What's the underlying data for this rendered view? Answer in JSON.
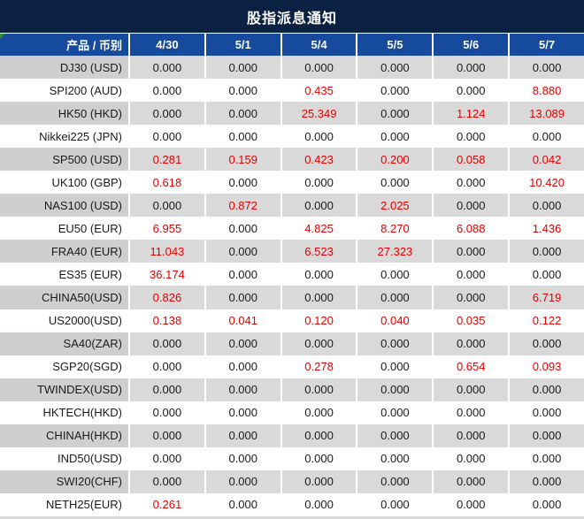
{
  "title": "股指派息通知",
  "table": {
    "product_header": "产品 / 币别",
    "date_headers": [
      "4/30",
      "5/1",
      "5/4",
      "5/5",
      "5/6",
      "5/7"
    ],
    "rows": [
      {
        "product": "DJ30 (USD)",
        "values": [
          "0.000",
          "0.000",
          "0.000",
          "0.000",
          "0.000",
          "0.000"
        ],
        "red": [
          false,
          false,
          false,
          false,
          false,
          false
        ]
      },
      {
        "product": "SPI200 (AUD)",
        "values": [
          "0.000",
          "0.000",
          "0.435",
          "0.000",
          "0.000",
          "8.880"
        ],
        "red": [
          false,
          false,
          true,
          false,
          false,
          true
        ]
      },
      {
        "product": "HK50 (HKD)",
        "values": [
          "0.000",
          "0.000",
          "25.349",
          "0.000",
          "1.124",
          "13.089"
        ],
        "red": [
          false,
          false,
          true,
          false,
          true,
          true
        ]
      },
      {
        "product": "Nikkei225 (JPN)",
        "values": [
          "0.000",
          "0.000",
          "0.000",
          "0.000",
          "0.000",
          "0.000"
        ],
        "red": [
          false,
          false,
          false,
          false,
          false,
          false
        ]
      },
      {
        "product": "SP500 (USD)",
        "values": [
          "0.281",
          "0.159",
          "0.423",
          "0.200",
          "0.058",
          "0.042"
        ],
        "red": [
          true,
          true,
          true,
          true,
          true,
          true
        ]
      },
      {
        "product": "UK100 (GBP)",
        "values": [
          "0.618",
          "0.000",
          "0.000",
          "0.000",
          "0.000",
          "10.420"
        ],
        "red": [
          true,
          false,
          false,
          false,
          false,
          true
        ]
      },
      {
        "product": "NAS100 (USD)",
        "values": [
          "0.000",
          "0.872",
          "0.000",
          "2.025",
          "0.000",
          "0.000"
        ],
        "red": [
          false,
          true,
          false,
          true,
          false,
          false
        ]
      },
      {
        "product": "EU50 (EUR)",
        "values": [
          "6.955",
          "0.000",
          "4.825",
          "8.270",
          "6.088",
          "1.436"
        ],
        "red": [
          true,
          false,
          true,
          true,
          true,
          true
        ]
      },
      {
        "product": "FRA40 (EUR)",
        "values": [
          "11.043",
          "0.000",
          "6.523",
          "27.323",
          "0.000",
          "0.000"
        ],
        "red": [
          true,
          false,
          true,
          true,
          false,
          false
        ]
      },
      {
        "product": "ES35 (EUR)",
        "values": [
          "36.174",
          "0.000",
          "0.000",
          "0.000",
          "0.000",
          "0.000"
        ],
        "red": [
          true,
          false,
          false,
          false,
          false,
          false
        ]
      },
      {
        "product": "CHINA50(USD)",
        "values": [
          "0.826",
          "0.000",
          "0.000",
          "0.000",
          "0.000",
          "6.719"
        ],
        "red": [
          true,
          false,
          false,
          false,
          false,
          true
        ]
      },
      {
        "product": "US2000(USD)",
        "values": [
          "0.138",
          "0.041",
          "0.120",
          "0.040",
          "0.035",
          "0.122"
        ],
        "red": [
          true,
          true,
          true,
          true,
          true,
          true
        ]
      },
      {
        "product": "SA40(ZAR)",
        "values": [
          "0.000",
          "0.000",
          "0.000",
          "0.000",
          "0.000",
          "0.000"
        ],
        "red": [
          false,
          false,
          false,
          false,
          false,
          false
        ]
      },
      {
        "product": "SGP20(SGD)",
        "values": [
          "0.000",
          "0.000",
          "0.278",
          "0.000",
          "0.654",
          "0.093"
        ],
        "red": [
          false,
          false,
          true,
          false,
          true,
          true
        ]
      },
      {
        "product": "TWINDEX(USD)",
        "values": [
          "0.000",
          "0.000",
          "0.000",
          "0.000",
          "0.000",
          "0.000"
        ],
        "red": [
          false,
          false,
          false,
          false,
          false,
          false
        ]
      },
      {
        "product": "HKTECH(HKD)",
        "values": [
          "0.000",
          "0.000",
          "0.000",
          "0.000",
          "0.000",
          "0.000"
        ],
        "red": [
          false,
          false,
          false,
          false,
          false,
          false
        ]
      },
      {
        "product": "CHINAH(HKD)",
        "values": [
          "0.000",
          "0.000",
          "0.000",
          "0.000",
          "0.000",
          "0.000"
        ],
        "red": [
          false,
          false,
          false,
          false,
          false,
          false
        ]
      },
      {
        "product": "IND50(USD)",
        "values": [
          "0.000",
          "0.000",
          "0.000",
          "0.000",
          "0.000",
          "0.000"
        ],
        "red": [
          false,
          false,
          false,
          false,
          false,
          false
        ]
      },
      {
        "product": "SWI20(CHF)",
        "values": [
          "0.000",
          "0.000",
          "0.000",
          "0.000",
          "0.000",
          "0.000"
        ],
        "red": [
          false,
          false,
          false,
          false,
          false,
          false
        ]
      },
      {
        "product": "NETH25(EUR)",
        "values": [
          "0.261",
          "0.000",
          "0.000",
          "0.000",
          "0.000",
          "0.000"
        ],
        "red": [
          true,
          false,
          false,
          false,
          false,
          false
        ]
      }
    ]
  },
  "icons": {
    "corner_marker": "green-triangle-marker"
  },
  "colors": {
    "title_bg": "#0a2142",
    "header_bg": "#164a9d",
    "row_gray": "#d9d9d9",
    "label_gray": "#d0cece",
    "value_red": "#e50000",
    "text_dark": "#1a1a1a",
    "marker_green": "#2f8f3c"
  }
}
